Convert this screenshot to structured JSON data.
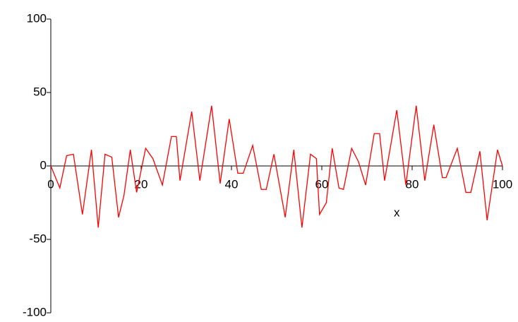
{
  "chart_data": {
    "type": "line",
    "x": [
      0,
      2,
      3.5,
      5,
      7,
      9,
      10.5,
      12,
      13.5,
      15,
      16.2,
      17.6,
      19,
      21,
      22.6,
      24.7,
      26.7,
      27.8,
      28.6,
      31.2,
      33,
      35.6,
      37.5,
      39.5,
      41.4,
      42.6,
      44.7,
      46.6,
      47.7,
      49.4,
      51.9,
      53.8,
      55.6,
      57.5,
      58.8,
      59.5,
      61,
      62.3,
      63.8,
      64.8,
      66.6,
      68.1,
      69.7,
      71.6,
      72.8,
      73.9,
      76.6,
      78.6,
      80.9,
      82.8,
      84.8,
      86.7,
      87.5,
      90,
      91.9,
      93,
      95,
      96.6,
      98.9,
      100
    ],
    "series": [
      {
        "color": "#ff0000",
        "values": [
          0,
          -15,
          7,
          8,
          -33,
          11,
          -42,
          8,
          6,
          -35,
          -20,
          11,
          -18,
          12,
          5,
          -13,
          20,
          20,
          -10,
          37,
          -10,
          41,
          -12,
          32,
          -5,
          -5,
          14,
          -16,
          -16,
          8,
          -35,
          11,
          -42,
          8,
          5,
          -33,
          -25,
          12,
          -15,
          -16,
          12,
          3,
          -13,
          22,
          22,
          -10,
          38,
          -13,
          41,
          -10,
          28,
          -8,
          -8,
          12,
          -18,
          -18,
          10,
          -37,
          11,
          0
        ]
      }
    ],
    "xlabel": "x",
    "xlim": [
      0,
      100
    ],
    "xticks": [
      0,
      20,
      40,
      60,
      80,
      100
    ],
    "ylim": [
      -100,
      100
    ],
    "yticks": [
      -100,
      -50,
      0,
      50,
      100
    ]
  }
}
